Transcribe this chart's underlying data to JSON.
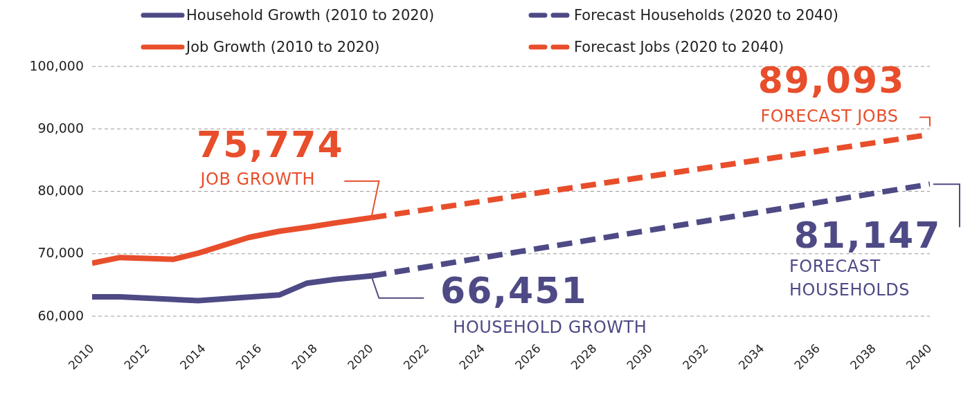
{
  "chart_data": {
    "type": "line",
    "legend": "top",
    "grid": "y",
    "xlim": [
      2010,
      2040
    ],
    "xticks": [
      2010,
      2012,
      2014,
      2016,
      2018,
      2020,
      2022,
      2024,
      2026,
      2028,
      2030,
      2032,
      2034,
      2036,
      2038,
      2040
    ],
    "ylim": [
      60000,
      100000
    ],
    "yticks": [
      {
        "value": 60000,
        "label": "60,000"
      },
      {
        "value": 70000,
        "label": "70,000"
      },
      {
        "value": 80000,
        "label": "80,000"
      },
      {
        "value": 90000,
        "label": "90,000"
      },
      {
        "value": 100000,
        "label": "100,000"
      }
    ],
    "series": [
      {
        "name": "Household Growth (2010 to 2020)",
        "color": "#4e4a85",
        "line_style": "solid",
        "x": [
          2010,
          2011,
          2013.8,
          2016.7,
          2017.7,
          2018.7,
          2020
        ],
        "values": [
          63100,
          63100,
          62500,
          63400,
          65300,
          65900,
          66451
        ],
        "value_labels": [
          null,
          null,
          null,
          null,
          null,
          null,
          "66,451"
        ]
      },
      {
        "name": "Forecast Households (2020 to 2040)",
        "color": "#4e4a85",
        "line_style": "dashed",
        "x": [
          2020,
          2040
        ],
        "values": [
          66451,
          81147
        ],
        "value_labels": [
          null,
          "81,147"
        ]
      },
      {
        "name": "Job Growth (2010 to 2020)",
        "color": "#e84e2b",
        "line_style": "solid",
        "x": [
          2010,
          2011,
          2012.9,
          2013.8,
          2015.6,
          2016.7,
          2017.8,
          2018.8,
          2020
        ],
        "values": [
          68500,
          69400,
          69100,
          70100,
          72600,
          73600,
          74300,
          75000,
          75774
        ],
        "value_labels": [
          null,
          null,
          null,
          null,
          null,
          null,
          null,
          null,
          "75,774"
        ]
      },
      {
        "name": "Forecast Jobs (2020 to 2040)",
        "color": "#e84e2b",
        "line_style": "dashed",
        "x": [
          2020,
          2040
        ],
        "values": [
          75774,
          89093
        ],
        "value_labels": [
          null,
          "89,093"
        ]
      }
    ],
    "annotations": [
      "HOUSEHOLD GROWTH",
      "FORECAST HOUSEHOLDS",
      "JOB GROWTH",
      "FORECAST JOBS"
    ]
  }
}
